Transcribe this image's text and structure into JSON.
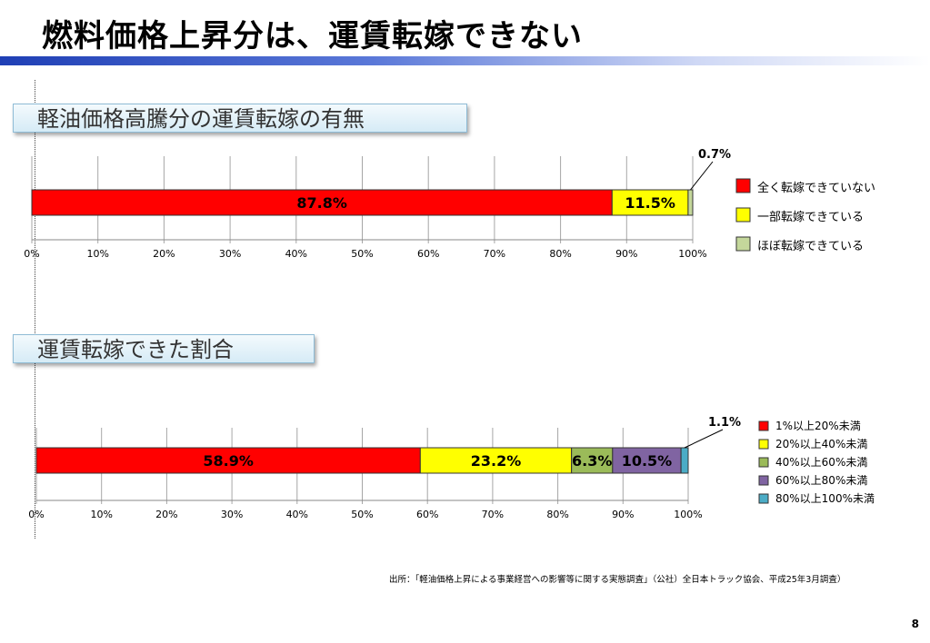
{
  "slide": {
    "title": "燃料価格上昇分は、運賃転嫁できない",
    "page_number": "8",
    "source_note": "出所：「軽油価格上昇による事業経営への影響等に関する実態調査」（公社）全日本トラック協会、平成25年3月調査）"
  },
  "section1": {
    "label": "軽油価格高騰分の運賃転嫁の有無"
  },
  "section2": {
    "label": "運賃転嫁できた割合"
  },
  "colors": {
    "red": "#ff0000",
    "yellow": "#ffff00",
    "light_green": "#c4d79b",
    "olive_green": "#9bbb59",
    "purple": "#8064a2",
    "teal": "#4bacc6",
    "title_rule": "#1f3fb5"
  },
  "chart_data": [
    {
      "type": "bar",
      "orientation": "horizontal-stacked-100",
      "title": "軽油価格高騰分の運賃転嫁の有無",
      "xlim": [
        0,
        100
      ],
      "x_ticks": [
        "0%",
        "10%",
        "20%",
        "30%",
        "40%",
        "50%",
        "60%",
        "70%",
        "80%",
        "90%",
        "100%"
      ],
      "series": [
        {
          "name": "全く転嫁できていない",
          "value": 87.8,
          "label": "87.8%",
          "color": "#ff0000"
        },
        {
          "name": "一部転嫁できている",
          "value": 11.5,
          "label": "11.5%",
          "color": "#ffff00"
        },
        {
          "name": "ほぼ転嫁できている",
          "value": 0.7,
          "label": "0.7%",
          "color": "#c4d79b"
        }
      ],
      "legend_position": "right"
    },
    {
      "type": "bar",
      "orientation": "horizontal-stacked-100",
      "title": "運賃転嫁できた割合",
      "xlim": [
        0,
        100
      ],
      "x_ticks": [
        "0%",
        "10%",
        "20%",
        "30%",
        "40%",
        "50%",
        "60%",
        "70%",
        "80%",
        "90%",
        "100%"
      ],
      "series": [
        {
          "name": "1%以上20%未満",
          "value": 58.9,
          "label": "58.9%",
          "color": "#ff0000"
        },
        {
          "name": "20%以上40%未満",
          "value": 23.2,
          "label": "23.2%",
          "color": "#ffff00"
        },
        {
          "name": "40%以上60%未満",
          "value": 6.3,
          "label": "6.3%",
          "color": "#9bbb59"
        },
        {
          "name": "60%以上80%未満",
          "value": 10.5,
          "label": "10.5%",
          "color": "#8064a2"
        },
        {
          "name": "80%以上100%未満",
          "value": 1.1,
          "label": "1.1%",
          "color": "#4bacc6"
        }
      ],
      "legend_position": "right"
    }
  ]
}
